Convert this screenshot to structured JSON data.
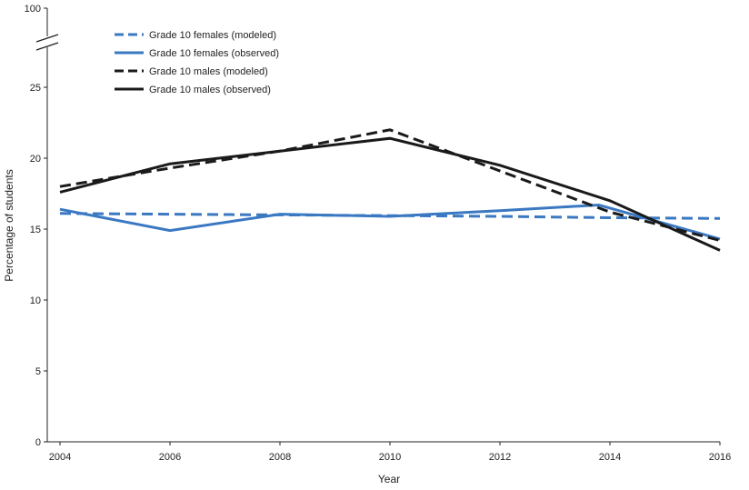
{
  "chart_data": {
    "type": "line",
    "xlabel": "Year",
    "ylabel": "Percentage of students",
    "x": [
      2004,
      2006,
      2008,
      2010,
      2012,
      2014,
      2016
    ],
    "x_ticks": [
      "2004",
      "2006",
      "2008",
      "2010",
      "2012",
      "2014",
      "2016"
    ],
    "y_ticks": [
      "0",
      "5",
      "10",
      "15",
      "20",
      "25",
      "100"
    ],
    "ylim": [
      0,
      100
    ],
    "y_axis_break": true,
    "legend_position": "top-left",
    "grid": false,
    "series": [
      {
        "name": "Grade 10 females (modeled)",
        "color": "#3a78c2",
        "dash": "dashed",
        "points": [
          [
            2004,
            16.1
          ],
          [
            2006,
            16.05
          ],
          [
            2008,
            16.0
          ],
          [
            2010,
            15.95
          ],
          [
            2012,
            15.9
          ],
          [
            2014,
            15.8
          ],
          [
            2016,
            15.75
          ]
        ]
      },
      {
        "name": "Grade 10 females (observed)",
        "color": "#3a78c2",
        "dash": "solid",
        "points": [
          [
            2004,
            16.4
          ],
          [
            2006,
            14.9
          ],
          [
            2008,
            16.05
          ],
          [
            2010,
            15.9
          ],
          [
            2012,
            16.3
          ],
          [
            2013.8,
            16.7
          ],
          [
            2016,
            14.3
          ]
        ]
      },
      {
        "name": "Grade 10 males (modeled)",
        "color": "#1a1a1a",
        "dash": "dashed",
        "points": [
          [
            2004,
            18.0
          ],
          [
            2006,
            19.3
          ],
          [
            2008,
            20.5
          ],
          [
            2010,
            22.0
          ],
          [
            2014,
            16.2
          ],
          [
            2016,
            14.2
          ]
        ]
      },
      {
        "name": "Grade 10 males (observed)",
        "color": "#1a1a1a",
        "dash": "solid",
        "points": [
          [
            2004,
            17.6
          ],
          [
            2006,
            19.6
          ],
          [
            2008,
            20.5
          ],
          [
            2010,
            21.4
          ],
          [
            2012,
            19.5
          ],
          [
            2014,
            17.0
          ],
          [
            2016,
            13.5
          ]
        ]
      }
    ]
  }
}
